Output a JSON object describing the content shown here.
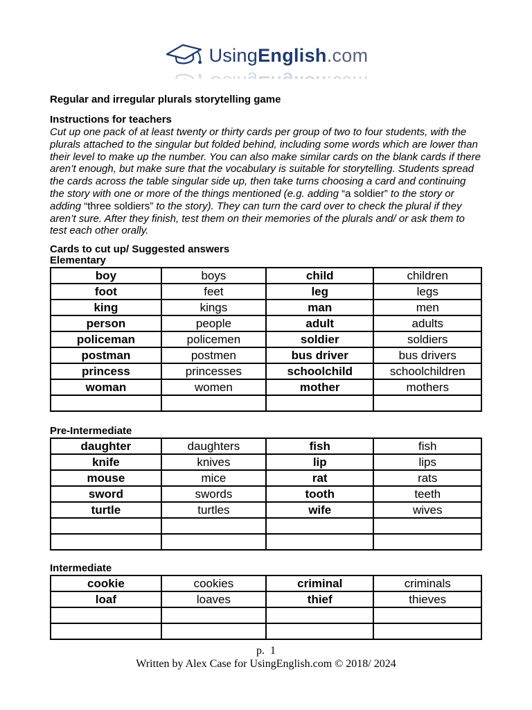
{
  "logo": {
    "using": "Using",
    "english": "English",
    "com": ".com"
  },
  "title": "Regular and irregular plurals storytelling game",
  "instructions": {
    "heading": "Instructions for teachers",
    "segments": [
      {
        "t": "Cut up one pack of at least twenty or thirty cards per group of two to four students, with the plurals attached to the singular but folded behind, including some words which are lower than their level to make up the number. You can also make similar cards on the blank cards if there aren’t enough, but make sure that the vocabulary is suitable for storytelling. Students spread the cards across the table singular side up, then take turns choosing a card and continuing the story with one or more of the things mentioned (e.g. adding "
      },
      {
        "t": "“a soldier”",
        "roman": true
      },
      {
        "t": " to the story or adding "
      },
      {
        "t": "“three soldiers”",
        "roman": true
      },
      {
        "t": " to the story). They can turn the card over to check the plural if they aren’t sure. After they finish, test them on their memories of the plurals and/ or ask them to test each other orally."
      }
    ]
  },
  "cards_heading": "Cards to cut up/ Suggested answers",
  "sections": [
    {
      "label": "Elementary",
      "rows": [
        [
          "boy",
          "boys",
          "child",
          "children"
        ],
        [
          "foot",
          "feet",
          "leg",
          "legs"
        ],
        [
          "king",
          "kings",
          "man",
          "men"
        ],
        [
          "person",
          "people",
          "adult",
          "adults"
        ],
        [
          "policeman",
          "policemen",
          "soldier",
          "soldiers"
        ],
        [
          "postman",
          "postmen",
          "bus driver",
          "bus drivers"
        ],
        [
          "princess",
          "princesses",
          "schoolchild",
          "schoolchildren"
        ],
        [
          "woman",
          "women",
          "mother",
          "mothers"
        ],
        [
          "",
          "",
          "",
          ""
        ]
      ]
    },
    {
      "label": "Pre-Intermediate",
      "rows": [
        [
          "daughter",
          "daughters",
          "fish",
          "fish"
        ],
        [
          "knife",
          "knives",
          "lip",
          "lips"
        ],
        [
          "mouse",
          "mice",
          "rat",
          "rats"
        ],
        [
          "sword",
          "swords",
          "tooth",
          "teeth"
        ],
        [
          "turtle",
          "turtles",
          "wife",
          "wives"
        ],
        [
          "",
          "",
          "",
          ""
        ],
        [
          "",
          "",
          "",
          ""
        ]
      ]
    },
    {
      "label": "Intermediate",
      "rows": [
        [
          "cookie",
          "cookies",
          "criminal",
          "criminals"
        ],
        [
          "loaf",
          "loaves",
          "thief",
          "thieves"
        ],
        [
          "",
          "",
          "",
          ""
        ],
        [
          "",
          "",
          "",
          ""
        ]
      ]
    }
  ],
  "footer": {
    "page_number": "p.  1",
    "credit": "Written by Alex Case for UsingEnglish.com © 2018/ 2024"
  },
  "colors": {
    "logo_navy": "#1e3a6e",
    "logo_com": "#55617f",
    "logo_reflection": "#97a3b8",
    "table_border": "#000000"
  }
}
